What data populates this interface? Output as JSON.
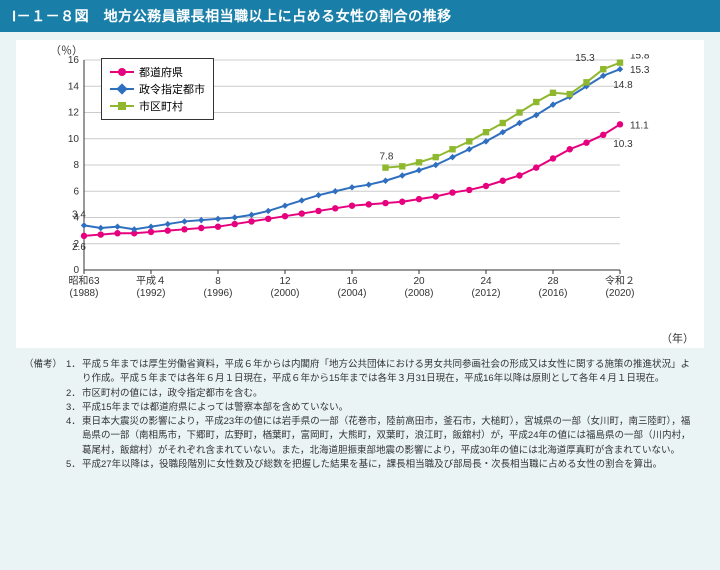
{
  "title": "Ⅰ－１－８図　地方公務員課長相当職以上に占める女性の割合の推移",
  "chart": {
    "type": "line",
    "y_axis": {
      "label": "（％）",
      "min": 0,
      "max": 16,
      "tick_step": 2
    },
    "x_axis": {
      "label": "（年）",
      "ticks": [
        {
          "x": 0,
          "top": "昭和63",
          "bot": "(1988)"
        },
        {
          "x": 4,
          "top": "平成４",
          "bot": "(1992)"
        },
        {
          "x": 8,
          "top": "8",
          "bot": "(1996)"
        },
        {
          "x": 12,
          "top": "12",
          "bot": "(2000)"
        },
        {
          "x": 16,
          "top": "16",
          "bot": "(2004)"
        },
        {
          "x": 20,
          "top": "20",
          "bot": "(2008)"
        },
        {
          "x": 24,
          "top": "24",
          "bot": "(2012)"
        },
        {
          "x": 28,
          "top": "28",
          "bot": "(2016)"
        },
        {
          "x": 32,
          "top": "令和２",
          "bot": "(2020)"
        }
      ]
    },
    "background_color": "#ffffff",
    "grid_color": "#cccccc",
    "axis_color": "#333333",
    "series": [
      {
        "name": "都道府県",
        "color": "#e6007e",
        "marker": "circle",
        "points": [
          {
            "x": 0,
            "y": 2.6
          },
          {
            "x": 1,
            "y": 2.7
          },
          {
            "x": 2,
            "y": 2.8
          },
          {
            "x": 3,
            "y": 2.8
          },
          {
            "x": 4,
            "y": 2.9
          },
          {
            "x": 5,
            "y": 3.0
          },
          {
            "x": 6,
            "y": 3.1
          },
          {
            "x": 7,
            "y": 3.2
          },
          {
            "x": 8,
            "y": 3.3
          },
          {
            "x": 9,
            "y": 3.5
          },
          {
            "x": 10,
            "y": 3.7
          },
          {
            "x": 11,
            "y": 3.9
          },
          {
            "x": 12,
            "y": 4.1
          },
          {
            "x": 13,
            "y": 4.3
          },
          {
            "x": 14,
            "y": 4.5
          },
          {
            "x": 15,
            "y": 4.7
          },
          {
            "x": 16,
            "y": 4.9
          },
          {
            "x": 17,
            "y": 5.0
          },
          {
            "x": 18,
            "y": 5.1
          },
          {
            "x": 19,
            "y": 5.2
          },
          {
            "x": 20,
            "y": 5.4
          },
          {
            "x": 21,
            "y": 5.6
          },
          {
            "x": 22,
            "y": 5.9
          },
          {
            "x": 23,
            "y": 6.1
          },
          {
            "x": 24,
            "y": 6.4
          },
          {
            "x": 25,
            "y": 6.8
          },
          {
            "x": 26,
            "y": 7.2
          },
          {
            "x": 27,
            "y": 7.8
          },
          {
            "x": 28,
            "y": 8.5
          },
          {
            "x": 29,
            "y": 9.2
          },
          {
            "x": 30,
            "y": 9.7
          },
          {
            "x": 31,
            "y": 10.3
          },
          {
            "x": 32,
            "y": 11.1
          }
        ],
        "labels": [
          {
            "x": 0,
            "y": 2.6,
            "text": "2.6",
            "dx": -12,
            "dy": 14
          },
          {
            "x": 31,
            "y": 10.3,
            "text": "10.3",
            "dx": 10,
            "dy": 12
          },
          {
            "x": 32,
            "y": 11.1,
            "text": "11.1",
            "dx": 10,
            "dy": 4
          }
        ]
      },
      {
        "name": "政令指定都市",
        "color": "#2f6fbf",
        "marker": "diamond",
        "points": [
          {
            "x": 0,
            "y": 3.4
          },
          {
            "x": 1,
            "y": 3.2
          },
          {
            "x": 2,
            "y": 3.3
          },
          {
            "x": 3,
            "y": 3.1
          },
          {
            "x": 4,
            "y": 3.3
          },
          {
            "x": 5,
            "y": 3.5
          },
          {
            "x": 6,
            "y": 3.7
          },
          {
            "x": 7,
            "y": 3.8
          },
          {
            "x": 8,
            "y": 3.9
          },
          {
            "x": 9,
            "y": 4.0
          },
          {
            "x": 10,
            "y": 4.2
          },
          {
            "x": 11,
            "y": 4.5
          },
          {
            "x": 12,
            "y": 4.9
          },
          {
            "x": 13,
            "y": 5.3
          },
          {
            "x": 14,
            "y": 5.7
          },
          {
            "x": 15,
            "y": 6.0
          },
          {
            "x": 16,
            "y": 6.3
          },
          {
            "x": 17,
            "y": 6.5
          },
          {
            "x": 18,
            "y": 6.8
          },
          {
            "x": 19,
            "y": 7.2
          },
          {
            "x": 20,
            "y": 7.6
          },
          {
            "x": 21,
            "y": 8.0
          },
          {
            "x": 22,
            "y": 8.6
          },
          {
            "x": 23,
            "y": 9.2
          },
          {
            "x": 24,
            "y": 9.8
          },
          {
            "x": 25,
            "y": 10.5
          },
          {
            "x": 26,
            "y": 11.2
          },
          {
            "x": 27,
            "y": 11.8
          },
          {
            "x": 28,
            "y": 12.6
          },
          {
            "x": 29,
            "y": 13.2
          },
          {
            "x": 30,
            "y": 14.0
          },
          {
            "x": 31,
            "y": 14.8
          },
          {
            "x": 32,
            "y": 15.3
          }
        ],
        "labels": [
          {
            "x": 0,
            "y": 3.4,
            "text": "3.4",
            "dx": -12,
            "dy": -8
          },
          {
            "x": 31,
            "y": 14.8,
            "text": "14.8",
            "dx": 10,
            "dy": 12
          },
          {
            "x": 32,
            "y": 15.3,
            "text": "15.3",
            "dx": 10,
            "dy": 4
          }
        ]
      },
      {
        "name": "市区町村",
        "color": "#8fb82f",
        "marker": "square",
        "points": [
          {
            "x": 18,
            "y": 7.8
          },
          {
            "x": 19,
            "y": 7.9
          },
          {
            "x": 20,
            "y": 8.2
          },
          {
            "x": 21,
            "y": 8.6
          },
          {
            "x": 22,
            "y": 9.2
          },
          {
            "x": 23,
            "y": 9.8
          },
          {
            "x": 24,
            "y": 10.5
          },
          {
            "x": 25,
            "y": 11.2
          },
          {
            "x": 26,
            "y": 12.0
          },
          {
            "x": 27,
            "y": 12.8
          },
          {
            "x": 28,
            "y": 13.5
          },
          {
            "x": 29,
            "y": 13.4
          },
          {
            "x": 30,
            "y": 14.3
          },
          {
            "x": 31,
            "y": 15.3
          },
          {
            "x": 32,
            "y": 15.8
          }
        ],
        "labels": [
          {
            "x": 18,
            "y": 7.8,
            "text": "7.8",
            "dx": -6,
            "dy": -8
          },
          {
            "x": 31,
            "y": 15.3,
            "text": "15.3",
            "dx": -28,
            "dy": -8
          },
          {
            "x": 32,
            "y": 15.8,
            "text": "15.8",
            "dx": 10,
            "dy": -4
          }
        ]
      }
    ]
  },
  "notes_head": "（備考）",
  "notes": [
    "平成５年までは厚生労働省資料，平成６年からは内閣府「地方公共団体における男女共同参画社会の形成又は女性に関する施策の推進状況」より作成。平成５年までは各年６月１日現在，平成６年から15年までは各年３月31日現在，平成16年以降は原則として各年４月１日現在。",
    "市区町村の値には，政令指定都市を含む。",
    "平成15年までは都道府県によっては警察本部を含めていない。",
    "東日本大震災の影響により，平成23年の値には岩手県の一部（花巻市，陸前高田市，釜石市，大槌町），宮城県の一部（女川町，南三陸町），福島県の一部（南相馬市，下郷町，広野町，楢葉町，富岡町，大熊町，双葉町，浪江町，飯舘村）が，平成24年の値には福島県の一部（川内村，葛尾村，飯舘村）がそれぞれ含まれていない。また，北海道胆振東部地震の影響により，平成30年の値には北海道厚真町が含まれていない。",
    "平成27年以降は，役職段階別に女性数及び総数を把握した結果を基に，課長相当職及び部局長・次長相当職に占める女性の割合を算出。"
  ]
}
